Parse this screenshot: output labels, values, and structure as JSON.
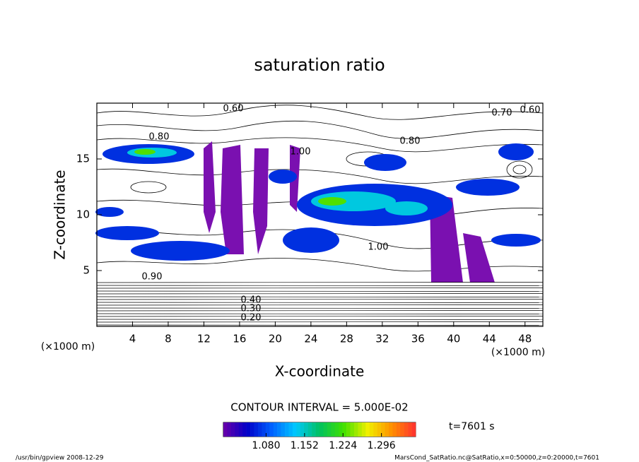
{
  "chart_data": {
    "type": "contour",
    "title": "saturation ratio",
    "x_label": "X-coordinate",
    "y_label": "Z-coordinate",
    "x_unit": "(×1000 m)",
    "y_unit": "(×1000 m)",
    "xlim": [
      0,
      50
    ],
    "xticks": [
      4,
      8,
      12,
      16,
      20,
      24,
      28,
      32,
      36,
      40,
      44,
      48
    ],
    "ylim": [
      0,
      20
    ],
    "yticks": [
      5,
      10,
      15
    ],
    "contour_interval": "CONTOUR INTERVAL = 5.000E-02",
    "annotations": [
      "0.60",
      "0.70",
      "0.60",
      "0.80",
      "0.80",
      "1.00",
      "0.90",
      "1.00",
      "0.20",
      "0.30",
      "0.40"
    ],
    "colorbar": {
      "clim": [
        1,
        1.36
      ],
      "colors": [
        "#6a00a8",
        "#0000c8",
        "#0060ff",
        "#00c8ff",
        "#00c060",
        "#40e000",
        "#f0f000",
        "#ff9000",
        "#ff3030"
      ],
      "ticks": [
        {
          "value": 1.08,
          "label": "1.080"
        },
        {
          "value": 1.152,
          "label": "1.152"
        },
        {
          "value": 1.224,
          "label": "1.224"
        },
        {
          "value": 1.296,
          "label": "1.296"
        }
      ]
    },
    "time_label": "t=7601 s",
    "footer_left": "/usr/bin/gpview   2008-12-29",
    "footer_right": "MarsCond_SatRatio.nc@SatRatio,x=0:50000,z=0:20000,t=7601"
  }
}
